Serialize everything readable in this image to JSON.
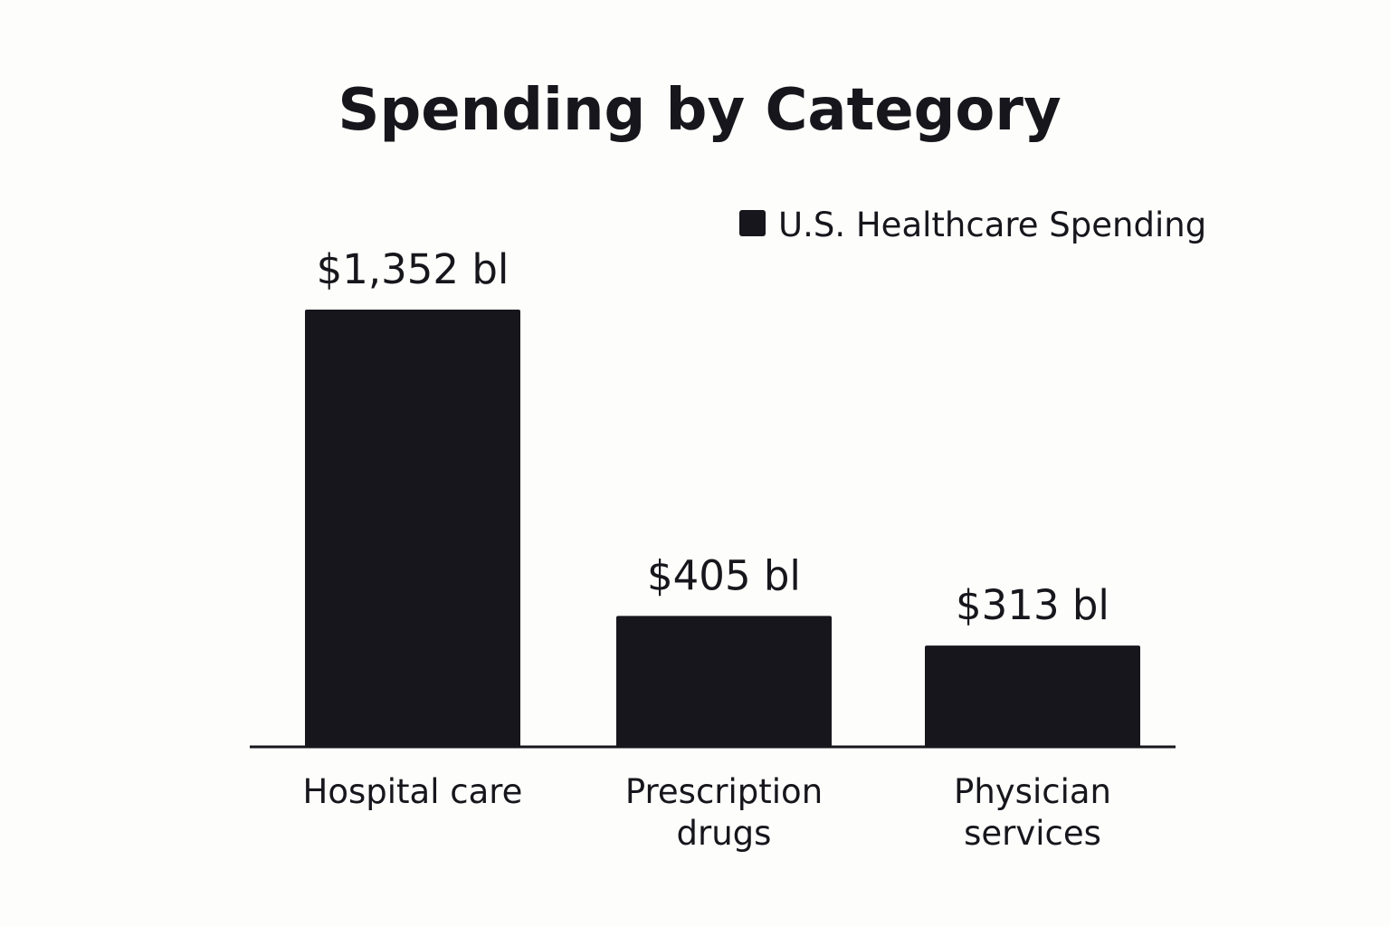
{
  "chart_data": {
    "type": "bar",
    "title": "Spending by Category",
    "categories": [
      "Hospital care",
      "Prescription drugs",
      "Physician services"
    ],
    "category_lines": [
      [
        "Hospital care"
      ],
      [
        "Prescription",
        "drugs"
      ],
      [
        "Physician",
        "services"
      ]
    ],
    "series": [
      {
        "name": "U.S. Healthcare Spending",
        "values": [
          1352,
          405,
          313
        ],
        "labels": [
          "$1,352 bl",
          "$405 bl",
          "$313 bl"
        ],
        "color": "#16161c"
      }
    ],
    "xlabel": "",
    "ylabel": "",
    "grid": false,
    "legend_position": "top-right"
  }
}
